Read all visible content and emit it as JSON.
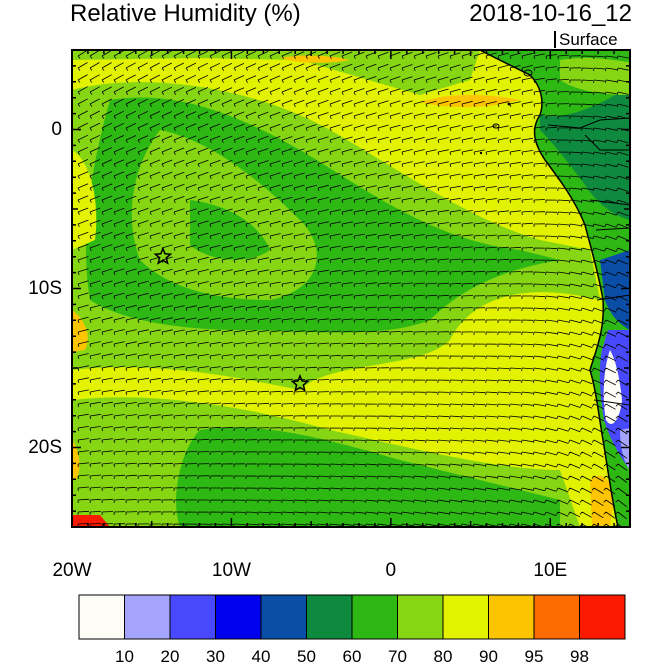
{
  "header": {
    "title": "Relative Humidity (%)",
    "datetime": "2018-10-16_12",
    "level": "Surface"
  },
  "axes": {
    "x_ticks": [
      "20W",
      "10W",
      "0",
      "10E"
    ],
    "y_ticks": [
      "0",
      "10S",
      "20S"
    ]
  },
  "colorbar": {
    "labels": [
      "10",
      "20",
      "30",
      "40",
      "50",
      "60",
      "70",
      "80",
      "90",
      "95",
      "98"
    ],
    "colors": [
      "#fdfdf5",
      "#a4a4fd",
      "#4848fd",
      "#0000ee",
      "#0a4ea8",
      "#0e8a3e",
      "#2eb814",
      "#86d614",
      "#e2f200",
      "#fcc500",
      "#fc6a00",
      "#fb1a00"
    ]
  },
  "map": {
    "lon_range": [
      -20,
      15
    ],
    "lat_range": [
      -25,
      5
    ],
    "markers": [
      {
        "name": "star-1",
        "lon": -14.3,
        "lat": -8.0
      },
      {
        "name": "star-2",
        "lon": -5.7,
        "lat": -16.0
      }
    ]
  }
}
